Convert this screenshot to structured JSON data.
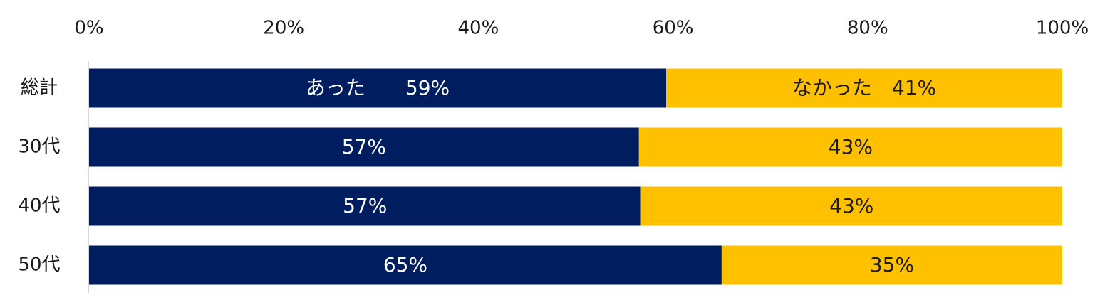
{
  "chart_data": {
    "type": "bar",
    "orientation": "horizontal",
    "stacked": true,
    "xlim": [
      0,
      100
    ],
    "x_ticks": [
      "0%",
      "20%",
      "40%",
      "60%",
      "80%",
      "100%"
    ],
    "x_tick_values": [
      0,
      20,
      40,
      60,
      80,
      100
    ],
    "categories": [
      "総計",
      "30代",
      "40代",
      "50代"
    ],
    "series": [
      {
        "name": "あった",
        "color": "#001e5f",
        "label_color": "#ffffff",
        "values": [
          59.3,
          56.5,
          56.7,
          65
        ],
        "labels": [
          "あった　　59%",
          "57%",
          "57%",
          "65%"
        ]
      },
      {
        "name": "なかった",
        "color": "#ffc000",
        "label_color": "#1a1a1a",
        "values": [
          40.7,
          43.5,
          43.3,
          35
        ],
        "labels": [
          "なかった　41%",
          "43%",
          "43%",
          "35%"
        ]
      }
    ],
    "legend": "none",
    "grid": false
  }
}
